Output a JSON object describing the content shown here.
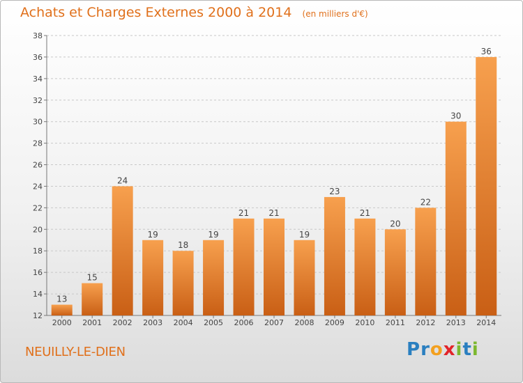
{
  "title": "Achats et Charges Externes 2000 à 2014",
  "subtitle": "(en milliers d'€)",
  "town": "NEUILLY-LE-DIEN",
  "logo": "Proxiti",
  "colors": {
    "accent": "#e0701b",
    "bar_top": "#f7a04e",
    "bar_bottom": "#c95f15"
  },
  "chart_data": {
    "type": "bar",
    "categories": [
      "2000",
      "2001",
      "2002",
      "2003",
      "2004",
      "2005",
      "2006",
      "2007",
      "2008",
      "2009",
      "2010",
      "2011",
      "2012",
      "2013",
      "2014"
    ],
    "values": [
      13,
      15,
      24,
      19,
      18,
      19,
      21,
      21,
      19,
      23,
      21,
      20,
      22,
      30,
      36
    ],
    "ylim": [
      12,
      38
    ],
    "yticks": [
      12,
      14,
      16,
      18,
      20,
      22,
      24,
      26,
      28,
      30,
      32,
      34,
      36,
      38
    ],
    "grid": "horizontal dashed",
    "legend": "none"
  }
}
